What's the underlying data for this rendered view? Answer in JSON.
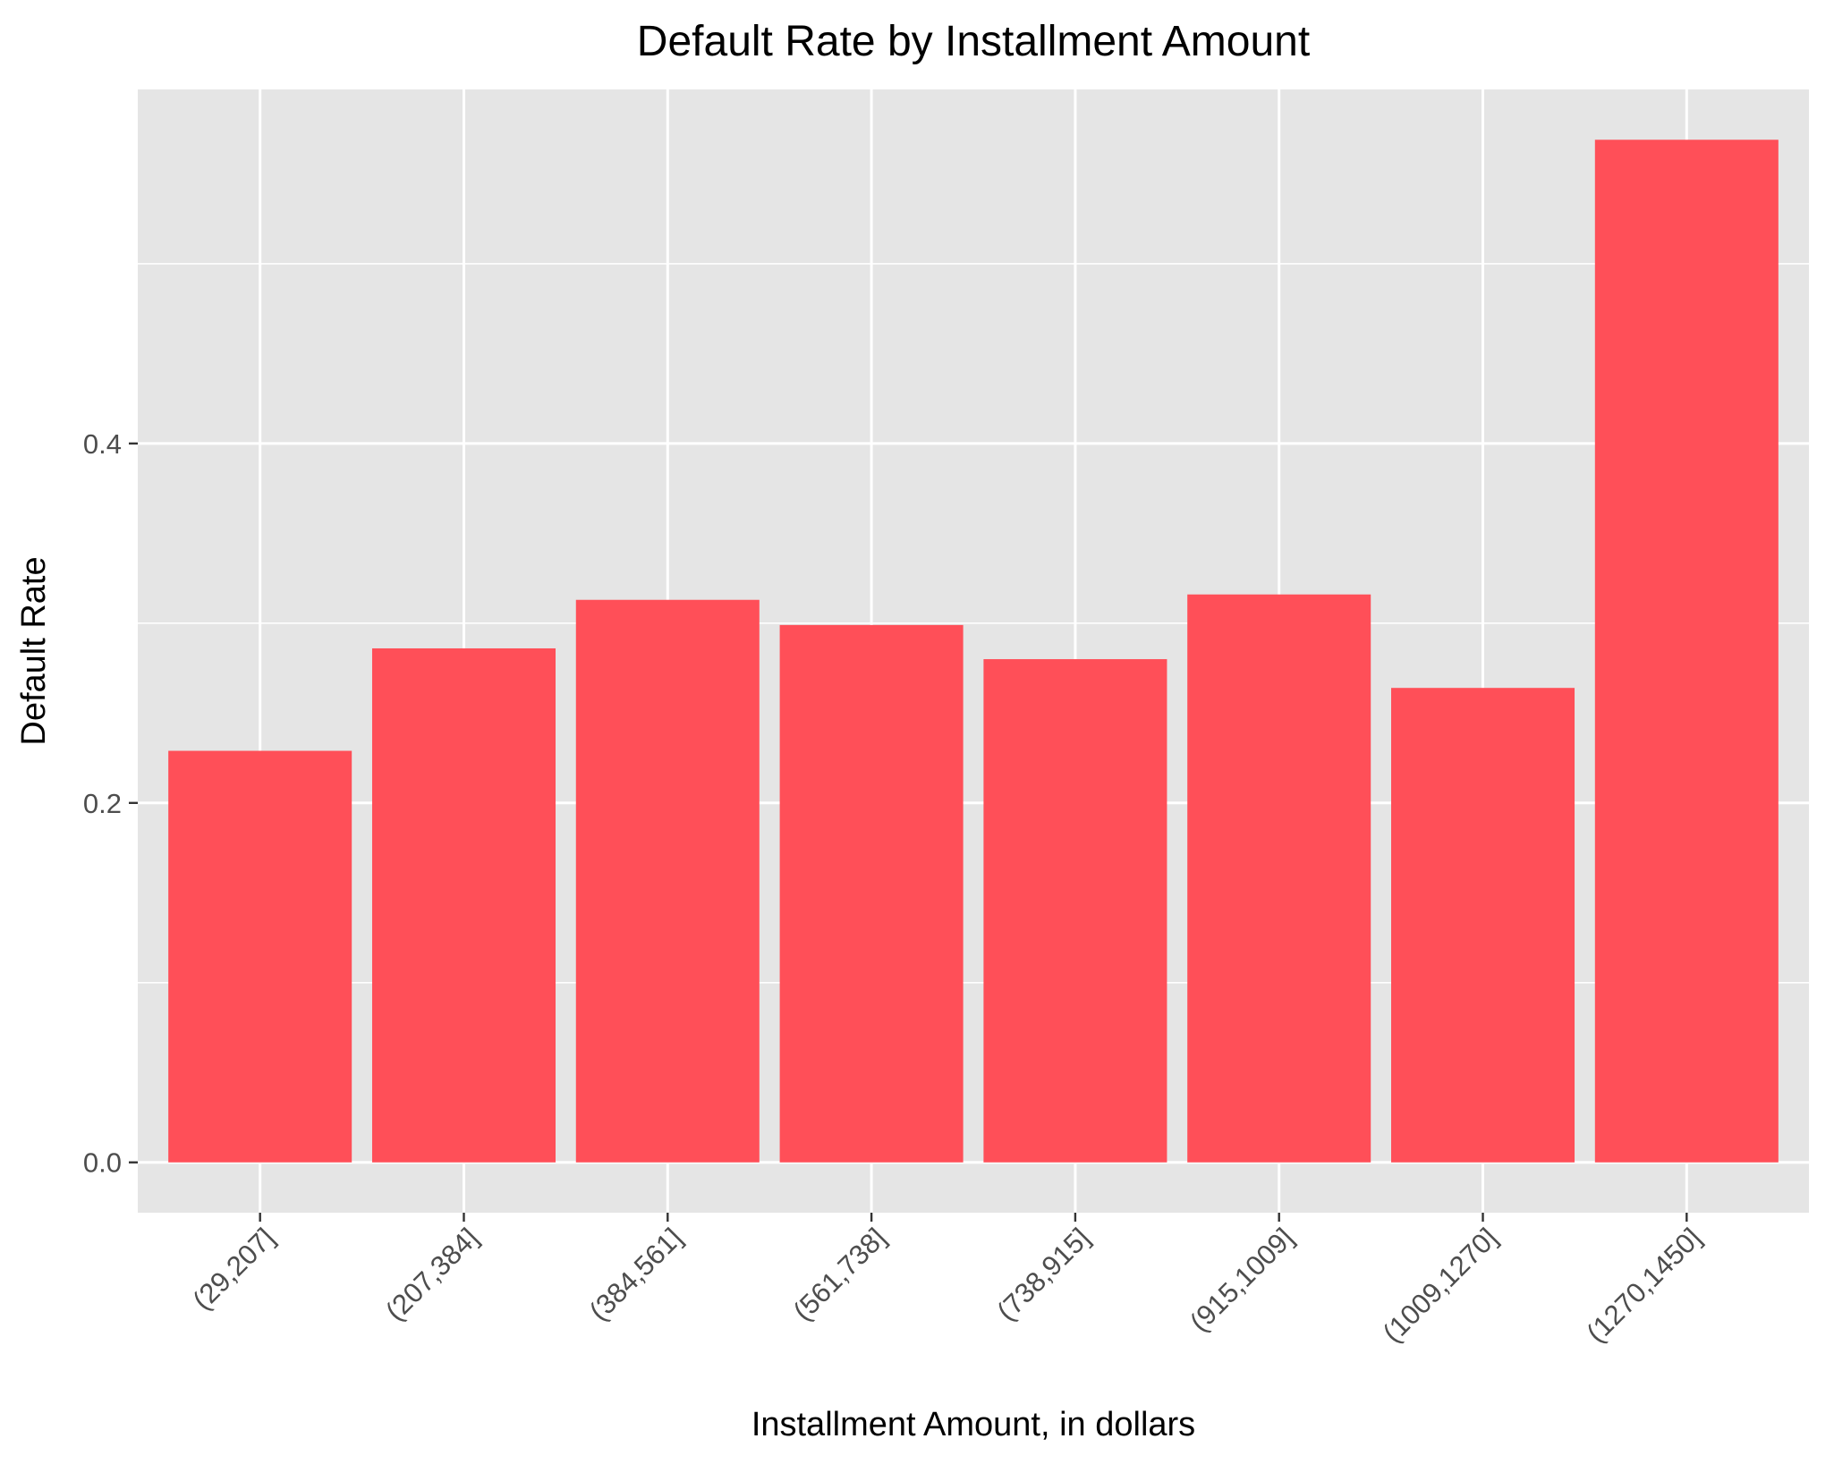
{
  "chart_data": {
    "type": "bar",
    "title": "Default Rate by Installment Amount",
    "xlabel": "Installment Amount, in dollars",
    "ylabel": "Default Rate",
    "categories": [
      "(29,207]",
      "(207,384]",
      "(384,561]",
      "(561,738]",
      "(738,915]",
      "(915,1009]",
      "(1009,1270]",
      "(1270,1450]"
    ],
    "values": [
      0.229,
      0.286,
      0.313,
      0.299,
      0.28,
      0.316,
      0.264,
      0.569
    ],
    "yticks": [
      0.0,
      0.2,
      0.4
    ],
    "yticklabels": [
      "0.0",
      "0.2",
      "0.4"
    ],
    "ylim": [
      -0.028,
      0.597
    ],
    "grid": true,
    "legend": "none",
    "colors": {
      "bar": "#FF4F58",
      "panel": "#E5E5E5",
      "grid": "#FFFFFF",
      "tick_text": "#4D4D4D"
    }
  }
}
